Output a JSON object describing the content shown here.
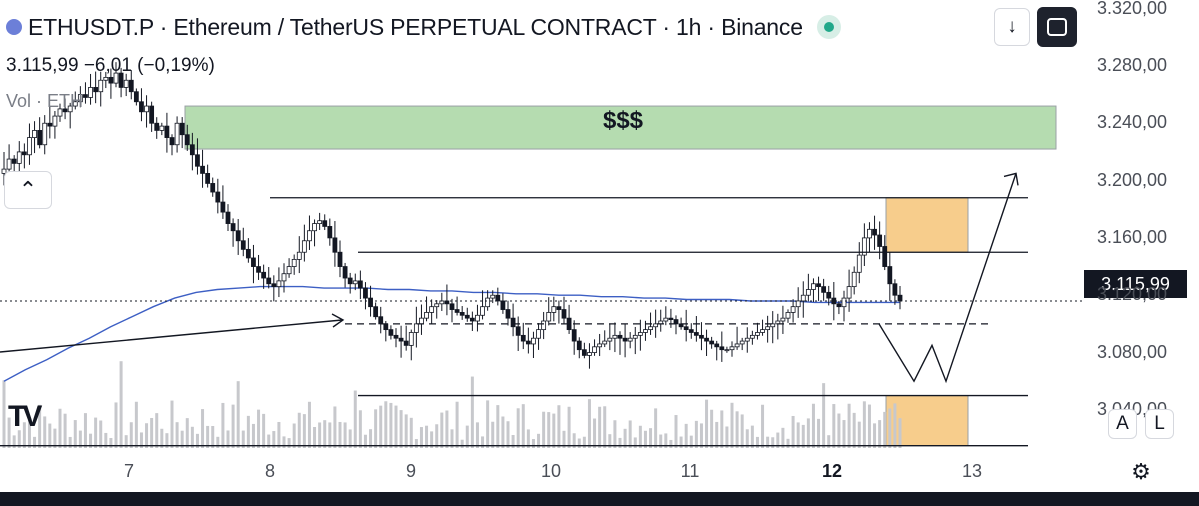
{
  "header": {
    "title": "ETHUSDT.P · Ethereum / TetherUS PERPETUAL CONTRACT · 1h · Binance",
    "ohlc": "3.115,99 −6,01 (−0,19%)",
    "volume_label": "Vol · ETH"
  },
  "buttons": {
    "download_icon": "↓",
    "fullscreen_icon": "⛶",
    "collapse_icon": "⌃",
    "auto_scale": "A",
    "log_scale": "L",
    "settings_icon": "⚙"
  },
  "annotations": {
    "target_zone_label": "$$$"
  },
  "colors": {
    "up": "#131722",
    "ma_line": "#3d5fc4",
    "target_zone": "#b5dcb0",
    "entry_zone": "#f7cd8c",
    "volume": "#c7c8cc"
  },
  "chart_data": {
    "type": "candlestick",
    "y_axis": {
      "ticks": [
        "3.320,00",
        "3.280,00",
        "3.240,00",
        "3.200,00",
        "3.160,00",
        "3.120,00",
        "3.080,00",
        "3.040,00"
      ],
      "tick_values": [
        3320,
        3280,
        3240,
        3200,
        3160,
        3120,
        3080,
        3040
      ],
      "range": [
        3012,
        3326
      ]
    },
    "x_axis": {
      "ticks": [
        "7",
        "8",
        "9",
        "10",
        "11",
        "12",
        "13"
      ],
      "bold_tick": "12"
    },
    "current_price": 3115.99,
    "current_price_label": "3.115,99",
    "close_series": [
      3208,
      3215,
      3212,
      3220,
      3218,
      3230,
      3235,
      3225,
      3240,
      3238,
      3245,
      3250,
      3248,
      3252,
      3255,
      3260,
      3258,
      3265,
      3262,
      3270,
      3272,
      3268,
      3275,
      3265,
      3270,
      3262,
      3255,
      3248,
      3252,
      3240,
      3235,
      3238,
      3230,
      3225,
      3240,
      3232,
      3225,
      3218,
      3210,
      3205,
      3198,
      3192,
      3185,
      3178,
      3170,
      3165,
      3158,
      3152,
      3146,
      3140,
      3136,
      3132,
      3128,
      3126,
      3130,
      3135,
      3140,
      3145,
      3150,
      3158,
      3165,
      3170,
      3172,
      3168,
      3160,
      3150,
      3140,
      3132,
      3128,
      3130,
      3125,
      3118,
      3112,
      3105,
      3100,
      3096,
      3092,
      3090,
      3088,
      3085,
      3094,
      3100,
      3104,
      3108,
      3112,
      3114,
      3116,
      3114,
      3110,
      3108,
      3106,
      3104,
      3102,
      3106,
      3112,
      3118,
      3120,
      3116,
      3110,
      3104,
      3098,
      3092,
      3088,
      3086,
      3090,
      3096,
      3102,
      3108,
      3112,
      3110,
      3104,
      3096,
      3088,
      3082,
      3078,
      3080,
      3084,
      3086,
      3088,
      3090,
      3092,
      3090,
      3088,
      3090,
      3092,
      3094,
      3096,
      3098,
      3100,
      3102,
      3104,
      3103,
      3100,
      3098,
      3096,
      3094,
      3092,
      3090,
      3088,
      3086,
      3084,
      3082,
      3082,
      3084,
      3086,
      3088,
      3090,
      3092,
      3094,
      3096,
      3098,
      3100,
      3102,
      3104,
      3108,
      3112,
      3116,
      3120,
      3124,
      3128,
      3126,
      3122,
      3118,
      3114,
      3112,
      3118,
      3126,
      3136,
      3148,
      3160,
      3166,
      3162,
      3154,
      3140,
      3128,
      3120,
      3115.99
    ],
    "ma_series": [
      3060,
      3068,
      3075,
      3083,
      3090,
      3098,
      3105,
      3112,
      3118,
      3122,
      3124,
      3125,
      3126,
      3126,
      3126,
      3125,
      3125,
      3125,
      3124,
      3124,
      3123,
      3123,
      3122,
      3122,
      3121,
      3121,
      3120,
      3120,
      3119,
      3119,
      3118,
      3118,
      3117,
      3117,
      3117,
      3116,
      3116,
      3116,
      3115,
      3115,
      3115,
      3115,
      3115
    ],
    "levels": [
      {
        "price": 3188,
        "x_from": "8",
        "x_to": "13"
      },
      {
        "price": 3150,
        "x_from": "8.6",
        "x_to": "13"
      },
      {
        "price": 3100,
        "x_from": "8.5",
        "x_to": "13",
        "style": "dashed"
      },
      {
        "price": 3050,
        "x_from": "8.6",
        "x_to": "13"
      },
      {
        "price": 3015,
        "x_from": "6",
        "x_to": "13"
      }
    ],
    "zones": [
      {
        "name": "$$$",
        "price_from": 3222,
        "price_to": 3252
      },
      {
        "name": "upper-box",
        "price_from": 3150,
        "price_to": 3188
      },
      {
        "name": "lower-box",
        "price_from": 3015,
        "price_to": 3050
      }
    ],
    "projection": [
      3100,
      3060,
      3085,
      3060,
      3205
    ]
  }
}
